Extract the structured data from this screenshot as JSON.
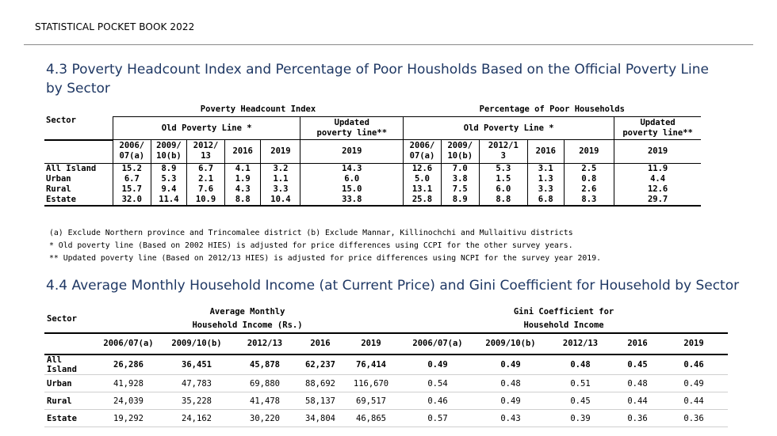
{
  "header": {
    "text": "STATISTICAL POCKET BOOK 2022"
  },
  "table1": {
    "title": "4.3  Poverty Headcount Index and Percentage of Poor Housholds Based on the Official Poverty Line  by Sector",
    "group_headcount": "Poverty Headcount Index",
    "group_percentage": "Percentage of Poor Households",
    "sector_label": "Sector",
    "old_line": "Old Poverty Line *",
    "updated_line": [
      "Updated",
      "poverty line**"
    ],
    "years_left": [
      [
        "2006/",
        "07(a)"
      ],
      [
        "2009/",
        "10(b)"
      ],
      [
        "2012/",
        "13"
      ],
      [
        "2016"
      ],
      [
        "2019"
      ],
      [
        "2019"
      ]
    ],
    "years_right": [
      [
        "2006/",
        "07(a)"
      ],
      [
        "2009/",
        "10(b)"
      ],
      [
        "2012/1",
        "3"
      ],
      [
        "2016"
      ],
      [
        "2019"
      ],
      [
        "2019"
      ]
    ],
    "rows": [
      {
        "sector": "All Island",
        "values": [
          "15.2",
          "8.9",
          "6.7",
          "4.1",
          "3.2",
          "14.3",
          "12.6",
          "7.0",
          "5.3",
          "3.1",
          "2.5",
          "11.9"
        ]
      },
      {
        "sector": "Urban",
        "values": [
          "6.7",
          "5.3",
          "2.1",
          "1.9",
          "1.1",
          "6.0",
          "5.0",
          "3.8",
          "1.5",
          "1.3",
          "0.8",
          "4.4"
        ]
      },
      {
        "sector": "Rural",
        "values": [
          "15.7",
          "9.4",
          "7.6",
          "4.3",
          "3.3",
          "15.0",
          "13.1",
          "7.5",
          "6.0",
          "3.3",
          "2.6",
          "12.6"
        ]
      },
      {
        "sector": "Estate",
        "values": [
          "32.0",
          "11.4",
          "10.9",
          "8.8",
          "10.4",
          "33.8",
          "25.8",
          "8.9",
          "8.8",
          "6.8",
          "8.3",
          "29.7"
        ]
      }
    ],
    "notes": [
      "(a)   Exclude Northern province and Trincomalee district (b) Exclude Mannar, Killinochchi and  Mullaitivu districts",
      "* Old poverty line (Based on 2002 HIES) is adjusted for price differences using CCPI for the other survey years.",
      "** Updated poverty line (Based on 2012/13 HIES) is adjusted for price differences using NCPI for the survey year 2019."
    ]
  },
  "table2": {
    "title": "4.4 Average Monthly Household  Income (at Current Price) and Gini Coefficient  for Household by Sector",
    "sector_label": "Sector",
    "group_income": [
      "Average  Monthly",
      "Household Income (Rs.)"
    ],
    "group_gini": [
      "Gini Coefficient for",
      "Household Income"
    ],
    "years": [
      "2006/07(a)",
      "2009/10(b)",
      "2012/13",
      "2016",
      "2019",
      "2006/07(a)",
      "2009/10(b)",
      "2012/13",
      "2016",
      "2019"
    ],
    "rows": [
      {
        "sector": "All Island",
        "values": [
          "26,286",
          "36,451",
          "45,878",
          "62,237",
          "76,414",
          "0.49",
          "0.49",
          "0.48",
          "0.45",
          "0.46"
        ]
      },
      {
        "sector": "Urban",
        "values": [
          "41,928",
          "47,783",
          "69,880",
          "88,692",
          "116,670",
          "0.54",
          "0.48",
          "0.51",
          "0.48",
          "0.49"
        ]
      },
      {
        "sector": "Rural",
        "values": [
          "24,039",
          "35,228",
          "41,478",
          "58,137",
          "69,517",
          "0.46",
          "0.49",
          "0.45",
          "0.44",
          "0.44"
        ]
      },
      {
        "sector": "Estate",
        "values": [
          "19,292",
          "24,162",
          "30,220",
          "34,804",
          "46,865",
          "0.57",
          "0.43",
          "0.39",
          "0.36",
          "0.36"
        ]
      }
    ]
  }
}
